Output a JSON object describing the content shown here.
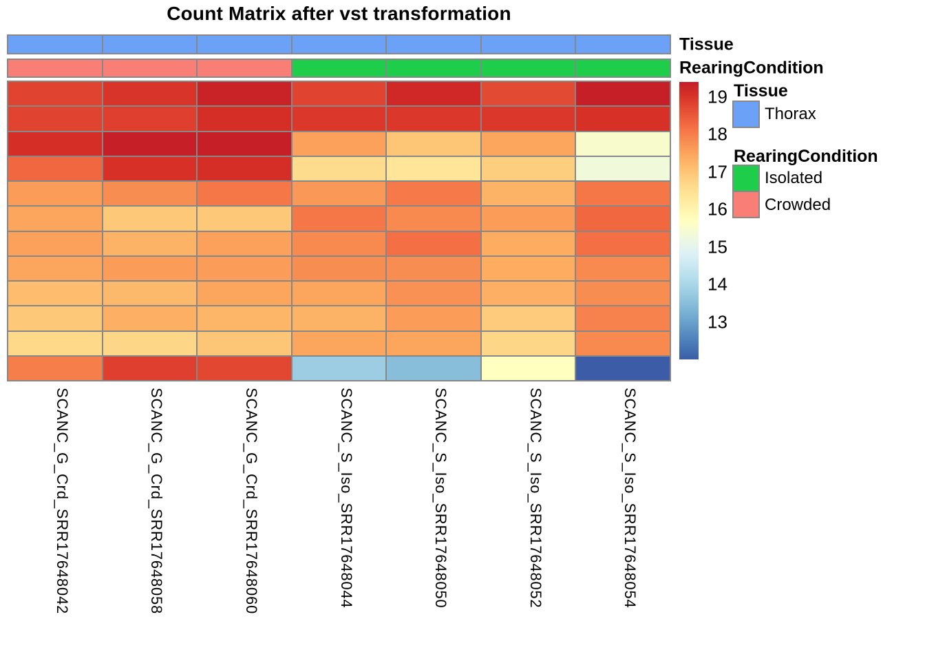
{
  "title": "Count Matrix after vst transformation",
  "annotation_bars": {
    "tissue_label": "Tissue",
    "rearing_label": "RearingCondition"
  },
  "annotation_colors": {
    "Thorax": "#6BA2F8",
    "Isolated": "#1ECE4B",
    "Crowded": "#F97F76"
  },
  "legend": {
    "tissue_title": "Tissue",
    "tissue_items": [
      {
        "label": "Thorax",
        "color": "#6BA2F8"
      }
    ],
    "rearing_title": "RearingCondition",
    "rearing_items": [
      {
        "label": "Isolated",
        "color": "#1ECE4B"
      },
      {
        "label": "Crowded",
        "color": "#F97F76"
      }
    ]
  },
  "colorbar": {
    "ticks": [
      19,
      18,
      17,
      16,
      15,
      14,
      13
    ],
    "range": [
      12.0,
      19.4
    ]
  },
  "chart_data": {
    "type": "heatmap",
    "title": "Count Matrix after vst transformation",
    "columns": [
      "SCANC_G_Crd_SRR17648042",
      "SCANC_G_Crd_SRR17648058",
      "SCANC_G_Crd_SRR17648060",
      "SCANC_S_Iso_SRR17648044",
      "SCANC_S_Iso_SRR17648050",
      "SCANC_S_Iso_SRR17648052",
      "SCANC_S_Iso_SRR17648054"
    ],
    "column_tissue": [
      "Thorax",
      "Thorax",
      "Thorax",
      "Thorax",
      "Thorax",
      "Thorax",
      "Thorax"
    ],
    "column_rearing": [
      "Crowded",
      "Crowded",
      "Crowded",
      "Isolated",
      "Isolated",
      "Isolated",
      "Isolated"
    ],
    "n_rows": 12,
    "row_labels_shown": false,
    "values": [
      [
        18.8,
        19.0,
        19.3,
        18.8,
        19.2,
        18.7,
        19.35
      ],
      [
        18.8,
        18.85,
        19.1,
        18.95,
        18.95,
        18.95,
        19.05
      ],
      [
        19.1,
        19.35,
        19.35,
        17.55,
        17.0,
        17.5,
        15.5
      ],
      [
        18.3,
        19.05,
        19.1,
        16.6,
        16.4,
        16.85,
        15.3
      ],
      [
        17.6,
        17.8,
        18.1,
        17.65,
        18.05,
        17.3,
        18.1
      ],
      [
        17.5,
        16.95,
        16.95,
        18.1,
        17.85,
        17.6,
        18.3
      ],
      [
        17.55,
        17.3,
        17.55,
        17.85,
        18.2,
        17.4,
        18.2
      ],
      [
        17.5,
        17.6,
        17.6,
        17.8,
        17.8,
        17.4,
        17.85
      ],
      [
        17.15,
        17.2,
        17.5,
        17.5,
        17.75,
        17.35,
        17.8
      ],
      [
        16.95,
        17.35,
        17.25,
        17.3,
        17.6,
        16.9,
        17.95
      ],
      [
        16.65,
        16.7,
        17.0,
        17.5,
        17.5,
        16.7,
        17.85
      ],
      [
        18.0,
        18.85,
        18.75,
        13.8,
        13.5,
        15.7,
        12.0
      ]
    ],
    "colormap": {
      "name": "RdYlBu reversed",
      "stops": [
        "#313695",
        "#4575B4",
        "#74ADD1",
        "#ABD9E9",
        "#E0F3F8",
        "#FFFFBF",
        "#FEE090",
        "#FDAE61",
        "#F46D43",
        "#D73027",
        "#A50026"
      ],
      "domain": [
        11.5,
        19.9
      ]
    },
    "colorbar_range": [
      12.0,
      19.4
    ],
    "legend_position": "right",
    "grid_line_color": "#878787"
  }
}
